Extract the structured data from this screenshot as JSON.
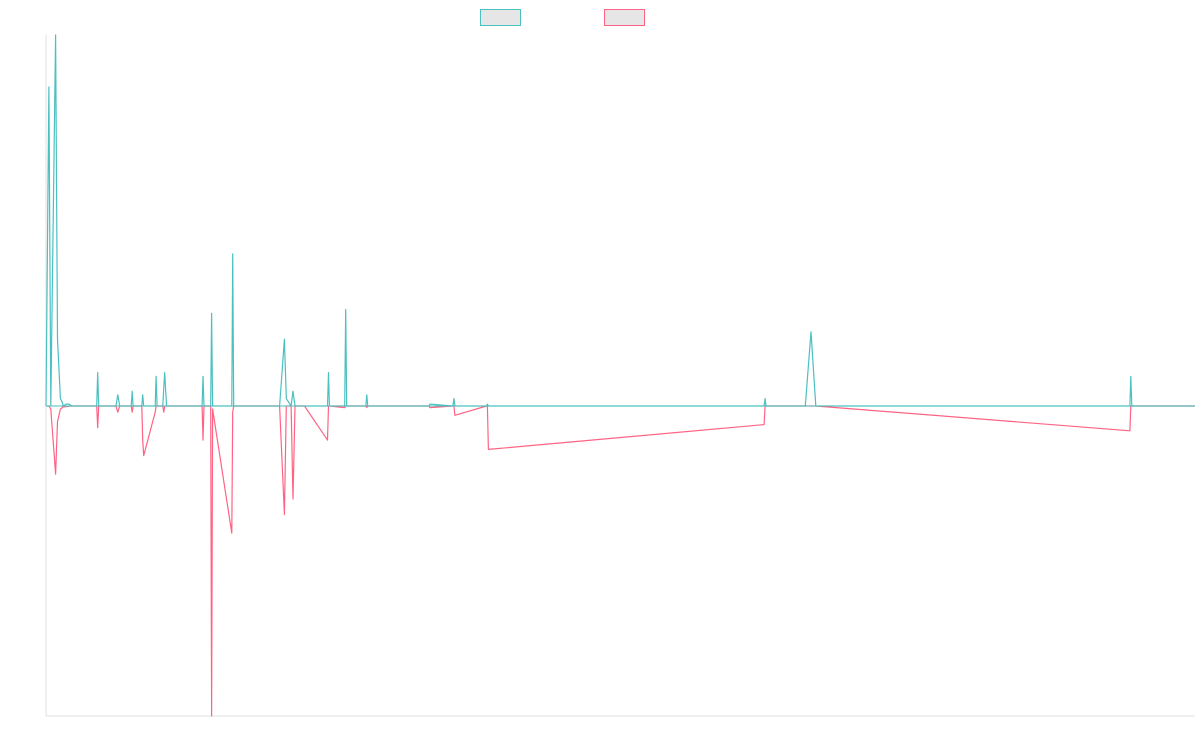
{
  "chart_data": {
    "type": "line",
    "title": "",
    "xlabel": "",
    "ylabel": "",
    "grid": false,
    "legend_position": "top-center",
    "ylim": [
      -1,
      1
    ],
    "xlim": [
      0,
      1200
    ],
    "baseline": 0,
    "series": [
      {
        "color": "#4bc0c0",
        "fill": "#e6e6e6",
        "x": [
          0,
          3,
          5,
          10,
          12,
          15,
          17,
          18,
          21,
          24,
          27,
          30,
          34,
          40,
          45,
          53,
          54,
          55,
          73,
          75,
          77,
          89,
          90,
          91,
          100,
          101,
          102,
          114,
          115,
          116,
          122,
          123,
          124,
          125,
          126,
          163,
          164,
          165,
          172,
          173,
          174,
          194,
          195,
          196,
          244,
          249,
          251,
          256,
          258,
          260,
          270,
          294,
          295,
          296,
          312,
          313,
          314,
          334,
          335,
          336,
          350,
          400,
          401,
          425,
          426,
          427,
          460,
          461,
          462,
          750,
          751,
          752,
          793,
          799,
          804,
          1132,
          1133,
          1134,
          1135,
          1200
        ],
        "y": [
          0,
          0.86,
          0,
          1.0,
          0.18,
          0.02,
          0.01,
          0.0,
          0.005,
          0.005,
          0,
          0,
          0,
          0,
          0,
          0,
          0.09,
          0,
          0,
          0.03,
          0,
          0,
          0.04,
          0,
          0,
          0.03,
          0,
          0,
          0.08,
          0,
          0,
          0.05,
          0.09,
          0.04,
          0,
          0,
          0.08,
          0,
          0,
          0.25,
          0,
          0,
          0.41,
          0,
          0,
          0.18,
          0.02,
          0,
          0.04,
          0,
          0,
          0,
          0.09,
          0,
          0,
          0.26,
          0,
          0,
          0.03,
          0,
          0,
          0,
          0.005,
          0,
          0.02,
          0,
          0,
          0.005,
          0,
          0,
          0.02,
          0,
          0,
          0.2,
          0,
          0,
          0.08,
          0,
          0,
          0
        ]
      },
      {
        "color": "#ff6384",
        "fill": "#e6e6e6",
        "x": [
          0,
          3,
          5,
          10,
          12,
          15,
          17,
          18,
          21,
          24,
          27,
          30,
          34,
          40,
          45,
          53,
          54,
          55,
          73,
          75,
          77,
          89,
          90,
          91,
          100,
          101,
          102,
          114,
          115,
          116,
          122,
          123,
          124,
          125,
          126,
          163,
          164,
          165,
          172,
          173,
          174,
          194,
          195,
          196,
          244,
          249,
          251,
          256,
          258,
          260,
          270,
          294,
          295,
          296,
          312,
          313,
          314,
          334,
          335,
          336,
          350,
          400,
          401,
          425,
          426,
          427,
          460,
          461,
          462,
          750,
          751,
          752,
          793,
          799,
          804,
          1132,
          1133,
          1134,
          1135,
          1200
        ],
        "y": [
          0,
          0,
          -0.01,
          -0.22,
          -0.05,
          -0.01,
          -0.005,
          -0.003,
          -0.002,
          -0.001,
          0,
          0,
          0,
          0,
          0,
          0,
          -0.07,
          0,
          0,
          -0.02,
          0,
          0,
          -0.02,
          0,
          0,
          -0.11,
          -0.16,
          -0.02,
          0,
          0,
          0,
          -0.02,
          0,
          0,
          0,
          0,
          -0.11,
          0,
          0,
          -1.0,
          -0.01,
          -0.41,
          -0.02,
          0,
          0,
          -0.35,
          0,
          0,
          -0.3,
          0,
          0,
          -0.11,
          0,
          0,
          -0.005,
          0,
          0,
          0,
          -0.005,
          0,
          0,
          0,
          -0.005,
          0,
          0,
          -0.03,
          0,
          0,
          -0.14,
          -0.06,
          0,
          0,
          0,
          0,
          0,
          -0.08,
          0,
          0,
          0,
          0
        ]
      }
    ]
  }
}
